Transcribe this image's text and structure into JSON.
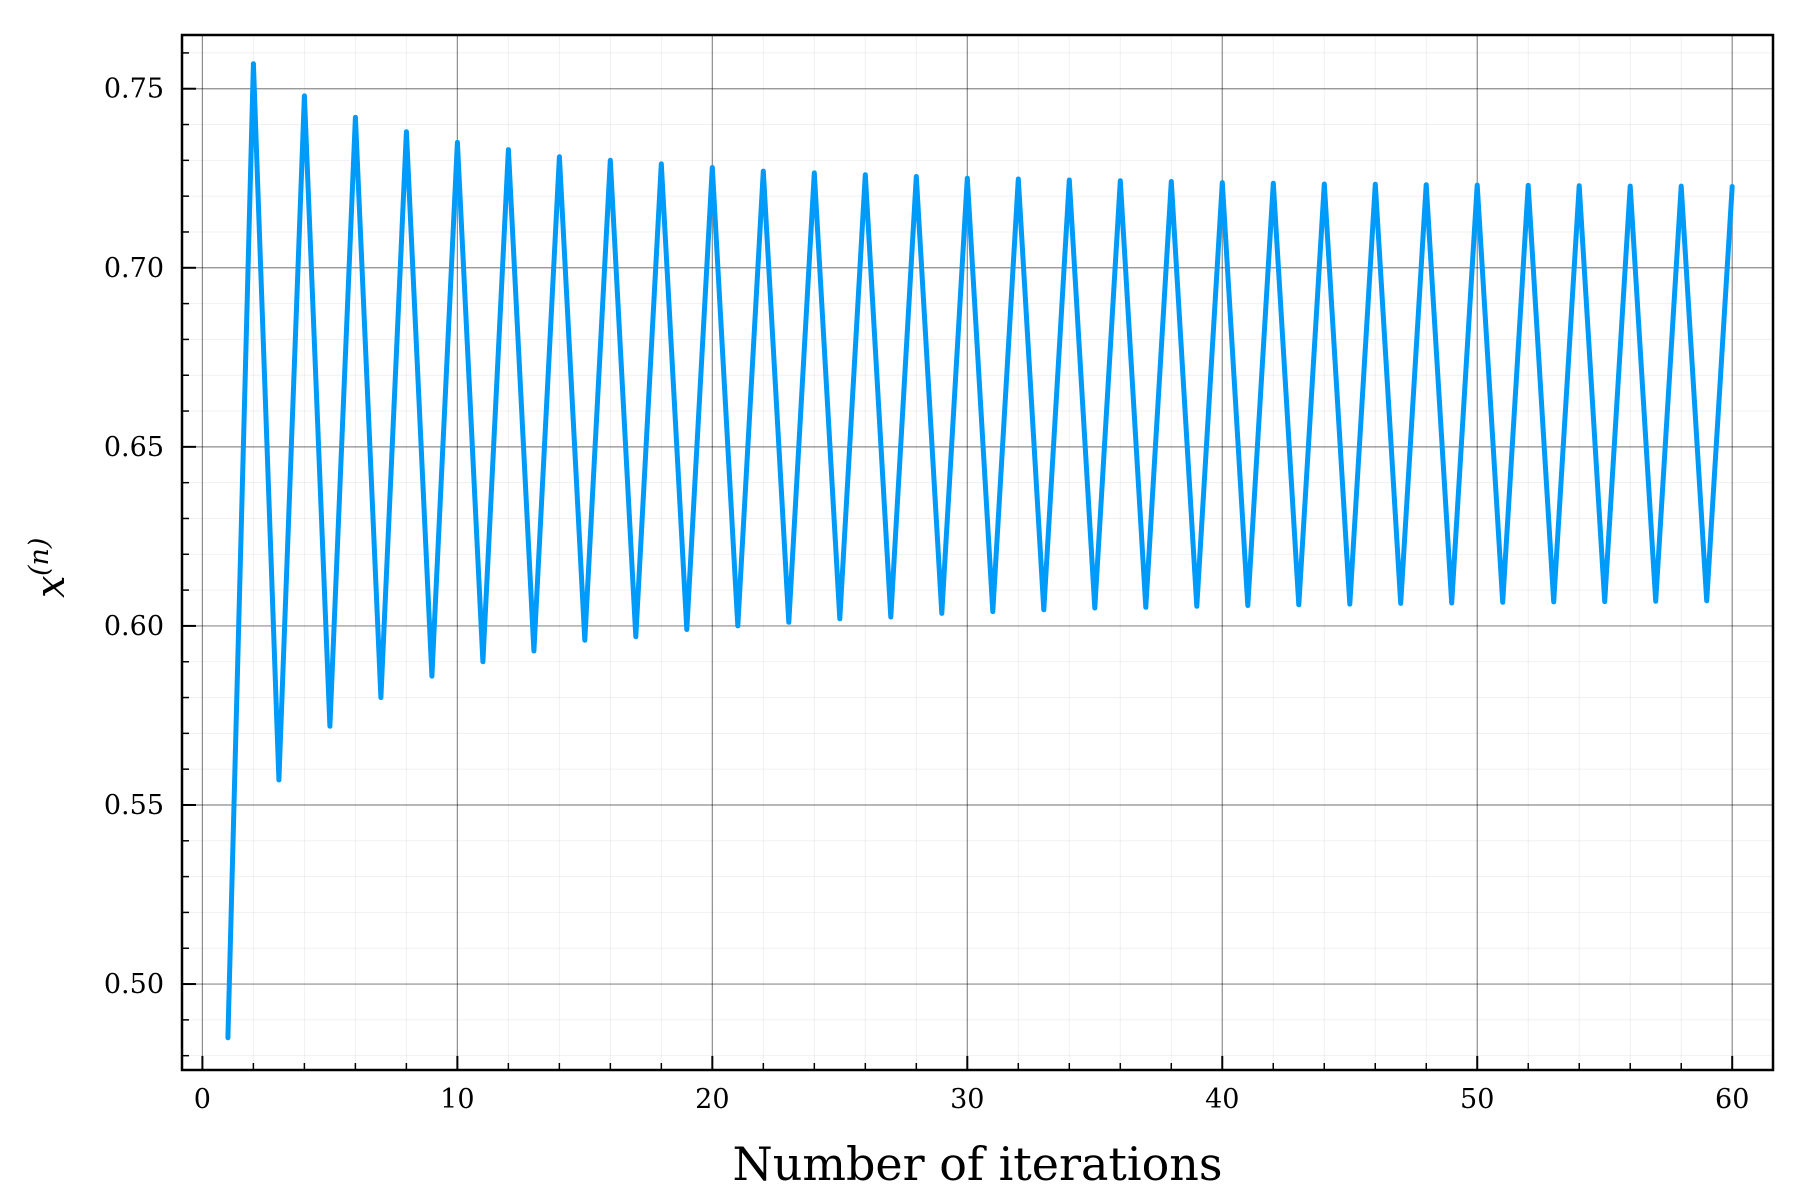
{
  "chart_data": {
    "type": "line",
    "title": "",
    "xlabel": "Number of iterations",
    "ylabel": {
      "base": "x",
      "superscript": "(n)"
    },
    "xlim": [
      -0.8,
      61.6
    ],
    "ylim": [
      0.476,
      0.765
    ],
    "xticks": [
      0,
      10,
      20,
      30,
      40,
      50,
      60
    ],
    "xtick_labels": [
      "0",
      "10",
      "20",
      "30",
      "40",
      "50",
      "60"
    ],
    "yticks": [
      0.5,
      0.55,
      0.6,
      0.65,
      0.7,
      0.75
    ],
    "ytick_labels": [
      "0.50",
      "0.55",
      "0.60",
      "0.65",
      "0.70",
      "0.75"
    ],
    "grid": true,
    "minor_grid": true,
    "legend": "none",
    "series": [
      {
        "color": "#009AF9",
        "x": [
          1,
          2,
          3,
          4,
          5,
          6,
          7,
          8,
          9,
          10,
          11,
          12,
          13,
          14,
          15,
          16,
          17,
          18,
          19,
          20,
          21,
          22,
          23,
          24,
          25,
          26,
          27,
          28,
          29,
          30,
          31,
          32,
          33,
          34,
          35,
          36,
          37,
          38,
          39,
          40,
          41,
          42,
          43,
          44,
          45,
          46,
          47,
          48,
          49,
          50,
          51,
          52,
          53,
          54,
          55,
          56,
          57,
          58,
          59,
          60
        ],
        "y": [
          0.485,
          0.757,
          0.557,
          0.748,
          0.572,
          0.742,
          0.58,
          0.738,
          0.586,
          0.735,
          0.59,
          0.733,
          0.593,
          0.731,
          0.596,
          0.73,
          0.597,
          0.729,
          0.599,
          0.728,
          0.6,
          0.727,
          0.601,
          0.7265,
          0.602,
          0.726,
          0.6025,
          0.7255,
          0.6035,
          0.725,
          0.604,
          0.7248,
          0.6045,
          0.7245,
          0.605,
          0.7243,
          0.6052,
          0.7241,
          0.6055,
          0.7238,
          0.6057,
          0.7236,
          0.6059,
          0.7234,
          0.6061,
          0.7233,
          0.6063,
          0.7232,
          0.6064,
          0.7231,
          0.6066,
          0.723,
          0.6067,
          0.7229,
          0.6068,
          0.7228,
          0.6069,
          0.7228,
          0.607,
          0.7227
        ]
      }
    ]
  }
}
